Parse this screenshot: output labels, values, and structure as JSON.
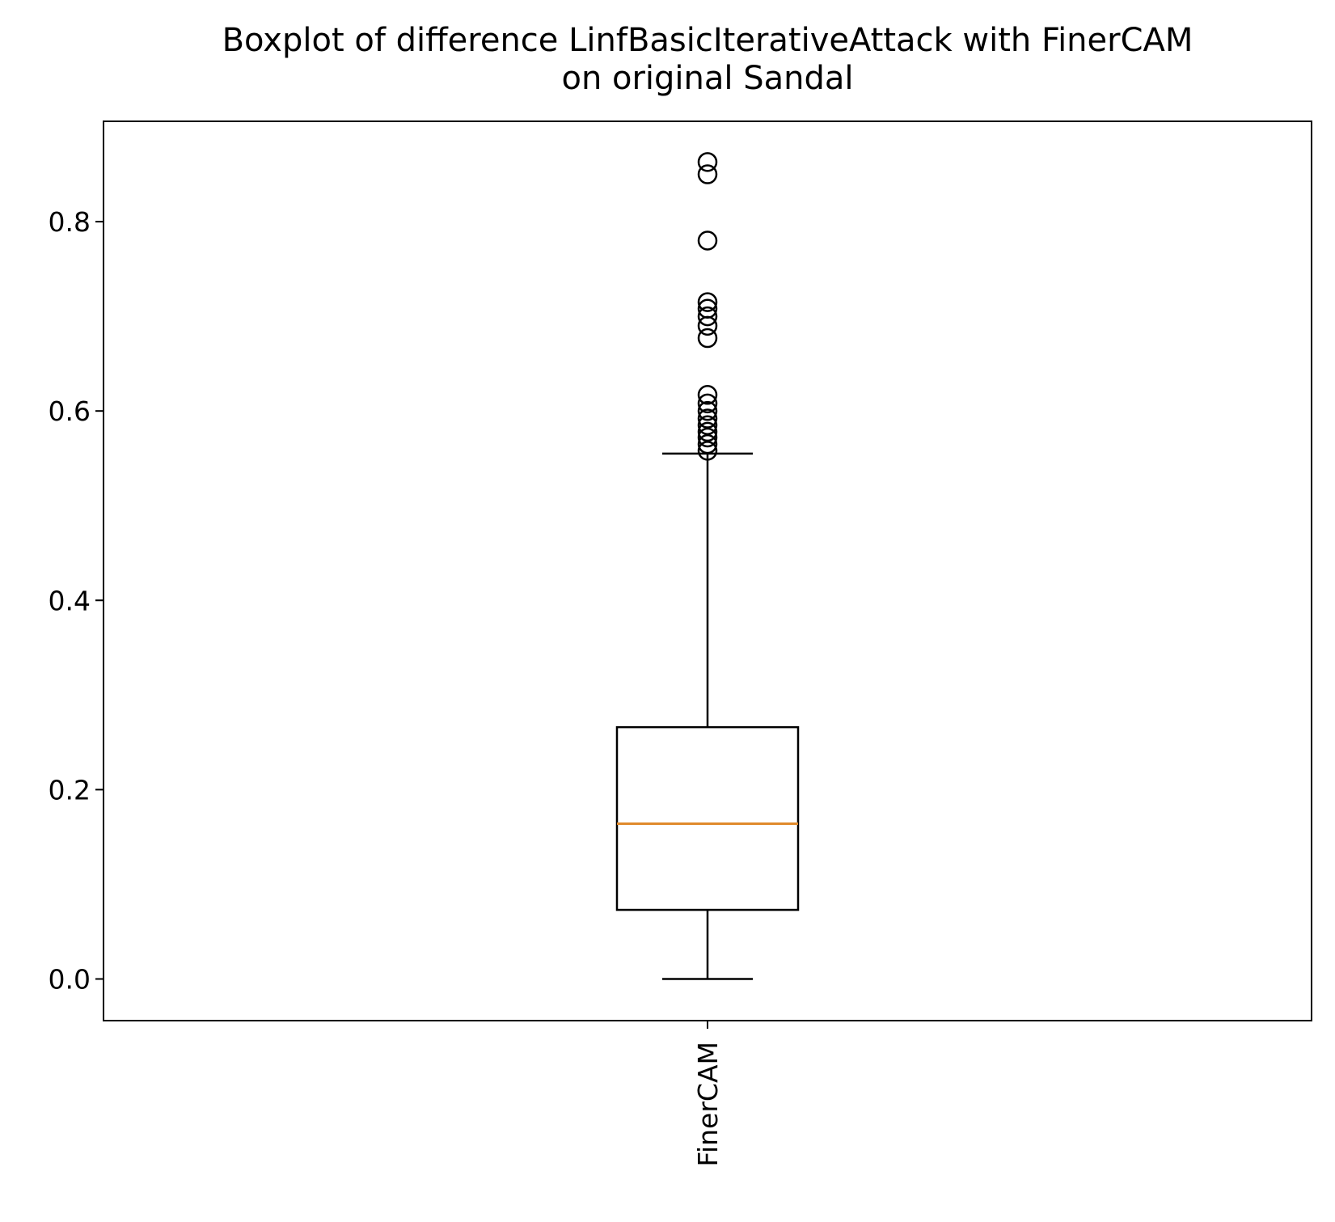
{
  "chart_data": {
    "type": "boxplot",
    "title": "Boxplot of difference LinfBasicIterativeAttack with FinerCAM\non original Sandal",
    "xlabel": "",
    "ylabel": "",
    "ylim": [
      -0.044,
      0.906
    ],
    "yticks": [
      0.0,
      0.2,
      0.4,
      0.6,
      0.8
    ],
    "ytick_labels": [
      "0.0",
      "0.2",
      "0.4",
      "0.6",
      "0.8"
    ],
    "grid": false,
    "categories": [
      "FinerCAM"
    ],
    "boxes": [
      {
        "label": "FinerCAM",
        "whisker_low": 0.0,
        "q1": 0.073,
        "median": 0.164,
        "q3": 0.266,
        "whisker_high": 0.555,
        "outliers": [
          0.558,
          0.565,
          0.572,
          0.578,
          0.585,
          0.592,
          0.6,
          0.608,
          0.617,
          0.677,
          0.69,
          0.7,
          0.708,
          0.715,
          0.78,
          0.85,
          0.863
        ]
      }
    ],
    "colors": {
      "box": "#000000",
      "median": "#e08a2c",
      "outlier": "#000000"
    }
  }
}
